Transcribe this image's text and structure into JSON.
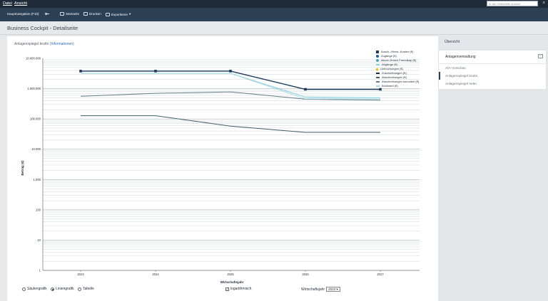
{
  "menu": {
    "file": "Datei",
    "view": "Ansicht"
  },
  "search": {
    "placeholder": "In der Onlinehilfe suchen"
  },
  "toolbar": {
    "main_nav": "Hauptnavigation (F10)",
    "start": "Startseite",
    "print": "Drucken",
    "export": "Exportieren"
  },
  "page": {
    "title": "Business Cockpit - Detailseite"
  },
  "chart_header": {
    "text": "Anlagenspiegel brutto (",
    "link": "Informationen",
    "close": ")"
  },
  "controls": {
    "bar_chart": "Säulengrafik",
    "line_chart": "Liniengrafik",
    "table": "Tabelle",
    "selected_view": "Liniengrafik",
    "log_label": "logarithmisch",
    "log_checked": true,
    "year_label": "Wirtschaftsjahr",
    "year_value": "2023"
  },
  "sidebar": {
    "overview": "Übersicht",
    "section_title": "Anlagenverwaltung",
    "items": [
      "AfA-Vorschau",
      "Anlagenspiegel brutto",
      "Anlagenspiegel netto"
    ],
    "active_item": "Anlagenspiegel brutto"
  },
  "chart_data": {
    "type": "line",
    "xlabel": "Wirtschaftsjahr",
    "ylabel": "Betrag (€)",
    "yscale": "log",
    "ylim": [
      1,
      10000000
    ],
    "y_tick_labels": [
      "10.000.000",
      "1.000.000",
      "100.000",
      "10.000",
      "1.000",
      "100",
      "10",
      "1"
    ],
    "y_ticks": [
      10000000,
      1000000,
      100000,
      10000,
      1000,
      100,
      10,
      1
    ],
    "categories": [
      "2023",
      "2024",
      "2025",
      "2026",
      "2027"
    ],
    "legend_position": "top-right",
    "series": [
      {
        "name": "Ansch.-/Herst.-Kosten (€)",
        "color": "#1b3a5c",
        "marker": "square",
        "values": [
          3800000,
          3800000,
          3800000,
          950000,
          950000
        ]
      },
      {
        "name": "Zugänge (€)",
        "color": "#1f5f96",
        "marker": "circle",
        "values": [
          null,
          null,
          null,
          null,
          null
        ]
      },
      {
        "name": "davon Zinsen Fremdkap (€)",
        "color": "#4aa3c8",
        "marker": "circle",
        "values": [
          null,
          null,
          null,
          null,
          null
        ]
      },
      {
        "name": "Abgänge (€)",
        "color": "#7fd0e0",
        "marker": "none",
        "values": [
          3200000,
          3200000,
          3200000,
          530000,
          500000
        ]
      },
      {
        "name": "Umbuchungen (€)",
        "color": "#f2b705",
        "marker": "diamond",
        "values": [
          null,
          null,
          null,
          null,
          null
        ]
      },
      {
        "name": "Zuschreibungen (€)",
        "color": "#1d2a36",
        "marker": "none",
        "values": [
          null,
          null,
          null,
          null,
          null
        ]
      },
      {
        "name": "Abschreibungen (€)",
        "color": "#3e5e6b",
        "marker": "none",
        "values": [
          128000,
          128000,
          58000,
          36000,
          36000
        ]
      },
      {
        "name": "Abschreibungen kumuliert (€)",
        "color": "#5f7f86",
        "marker": "none",
        "values": [
          560000,
          700000,
          780000,
          450000,
          420000
        ]
      },
      {
        "name": "Buchwert (€)",
        "color": "#a9d9e4",
        "marker": "none",
        "values": [
          3200000,
          3200000,
          3200000,
          460000,
          460000
        ]
      }
    ]
  }
}
